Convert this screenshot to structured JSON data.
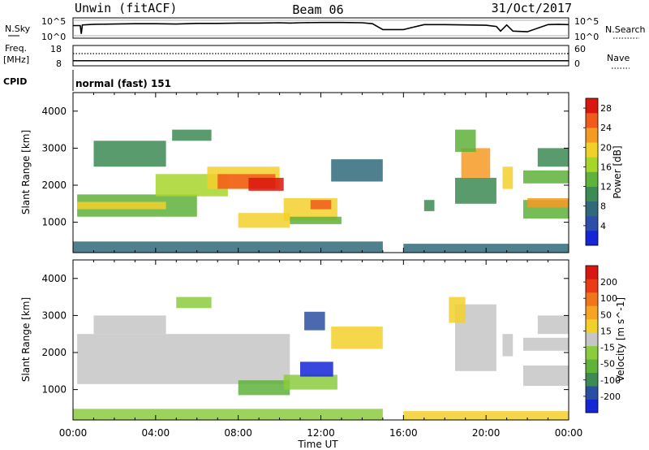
{
  "header": {
    "radar": "Unwin (fitACF)",
    "beam": "Beam 06",
    "date": "31/Oct/2017"
  },
  "noise_panel": {
    "left_label": "N.Sky",
    "right_label": "N.Search",
    "left_ticks": [
      "10^5",
      "10^0"
    ],
    "right_ticks": [
      "10^5",
      "10^0"
    ],
    "trace_color": "#000000",
    "nsky_log10": [
      [
        0.0,
        3.3
      ],
      [
        0.35,
        3.3
      ],
      [
        0.4,
        0.6
      ],
      [
        0.45,
        3.5
      ],
      [
        1.0,
        3.7
      ],
      [
        2.0,
        3.8
      ],
      [
        3.0,
        3.9
      ],
      [
        4.0,
        3.9
      ],
      [
        5.0,
        3.8
      ],
      [
        6.0,
        4.0
      ],
      [
        7.0,
        4.0
      ],
      [
        8.0,
        4.1
      ],
      [
        9.0,
        4.1
      ],
      [
        10.0,
        4.2
      ],
      [
        10.5,
        4.1
      ],
      [
        11.0,
        4.2
      ],
      [
        12.0,
        4.3
      ],
      [
        13.0,
        4.3
      ],
      [
        14.0,
        4.2
      ],
      [
        14.5,
        3.9
      ],
      [
        15.0,
        2.0
      ],
      [
        16.0,
        2.0
      ],
      [
        17.0,
        3.6
      ],
      [
        18.0,
        3.6
      ],
      [
        19.0,
        3.5
      ],
      [
        20.0,
        3.4
      ],
      [
        20.5,
        3.0
      ],
      [
        20.7,
        1.5
      ],
      [
        21.0,
        3.5
      ],
      [
        21.3,
        1.5
      ],
      [
        22.0,
        1.3
      ],
      [
        23.0,
        3.6
      ],
      [
        23.5,
        3.7
      ],
      [
        24.0,
        3.6
      ]
    ]
  },
  "freq_panel": {
    "left_label": "Freq.",
    "left_units": "[MHz]",
    "right_label": "Nave",
    "left_ticks": [
      "18",
      "8"
    ],
    "right_ticks": [
      "60",
      "0"
    ],
    "freq_mhz": 10.5,
    "nave": 36
  },
  "cpid": {
    "label": "CPID",
    "text": "normal (fast) 151"
  },
  "time_axis": {
    "label": "Time UT",
    "ticks": [
      "00:00",
      "04:00",
      "08:00",
      "12:00",
      "16:00",
      "20:00",
      "00:00"
    ]
  },
  "chart_data": [
    {
      "type": "heatmap",
      "name": "power",
      "xlabel": "",
      "ylabel": "Slant Range [km]",
      "y_ticks": [
        "1000",
        "2000",
        "3000",
        "4000"
      ],
      "xlim_hours": [
        0,
        24
      ],
      "ylim_km": [
        180,
        4500
      ],
      "colorbar": {
        "label": "Power [dB]",
        "ticks": [
          "4",
          "8",
          "12",
          "16",
          "20",
          "24",
          "28"
        ],
        "range": [
          0,
          30
        ],
        "colors": [
          "#1426d6",
          "#2b4fa8",
          "#2f6a7a",
          "#3c8a54",
          "#5fb23a",
          "#a7d62a",
          "#f2d02a",
          "#f59a24",
          "#f05a1c",
          "#d9160f"
        ]
      },
      "regions": [
        {
          "t0": 0.2,
          "t1": 6.0,
          "r0": 1150,
          "r1": 1750,
          "value": 13
        },
        {
          "t0": 0.2,
          "t1": 4.5,
          "r0": 1350,
          "r1": 1550,
          "value": 18
        },
        {
          "t0": 4.0,
          "t1": 7.5,
          "r0": 1700,
          "r1": 2300,
          "value": 17
        },
        {
          "t0": 6.5,
          "t1": 10.0,
          "r0": 1900,
          "r1": 2500,
          "value": 19
        },
        {
          "t0": 7.0,
          "t1": 9.8,
          "r0": 1900,
          "r1": 2300,
          "value": 25
        },
        {
          "t0": 8.5,
          "t1": 10.2,
          "r0": 1850,
          "r1": 2200,
          "value": 28
        },
        {
          "t0": 1.0,
          "t1": 4.5,
          "r0": 2500,
          "r1": 3200,
          "value": 9
        },
        {
          "t0": 4.8,
          "t1": 6.7,
          "r0": 3200,
          "r1": 3500,
          "value": 11
        },
        {
          "t0": 8.0,
          "t1": 10.5,
          "r0": 850,
          "r1": 1250,
          "value": 19
        },
        {
          "t0": 10.2,
          "t1": 12.8,
          "r0": 1050,
          "r1": 1650,
          "value": 20
        },
        {
          "t0": 11.5,
          "t1": 12.5,
          "r0": 1350,
          "r1": 1600,
          "value": 26
        },
        {
          "t0": 10.5,
          "t1": 13.0,
          "r0": 950,
          "r1": 1150,
          "value": 14
        },
        {
          "t0": 12.5,
          "t1": 15.0,
          "r0": 2100,
          "r1": 2700,
          "value": 6
        },
        {
          "t0": 18.5,
          "t1": 20.5,
          "r0": 1500,
          "r1": 2200,
          "value": 11
        },
        {
          "t0": 18.8,
          "t1": 20.2,
          "r0": 2200,
          "r1": 3000,
          "value": 22
        },
        {
          "t0": 18.5,
          "t1": 19.5,
          "r0": 2900,
          "r1": 3500,
          "value": 14
        },
        {
          "t0": 20.8,
          "t1": 21.3,
          "r0": 1900,
          "r1": 2500,
          "value": 20
        },
        {
          "t0": 21.8,
          "t1": 24.0,
          "r0": 1100,
          "r1": 1600,
          "value": 14
        },
        {
          "t0": 22.0,
          "t1": 24.0,
          "r0": 1400,
          "r1": 1650,
          "value": 22
        },
        {
          "t0": 21.8,
          "t1": 24.0,
          "r0": 2050,
          "r1": 2400,
          "value": 12
        },
        {
          "t0": 22.5,
          "t1": 24.0,
          "r0": 2500,
          "r1": 3000,
          "value": 10
        },
        {
          "t0": 0.0,
          "t1": 15.0,
          "r0": 180,
          "r1": 480,
          "value": 6
        },
        {
          "t0": 16.0,
          "t1": 24.0,
          "r0": 180,
          "r1": 420,
          "value": 8
        },
        {
          "t0": 17.0,
          "t1": 17.5,
          "r0": 1300,
          "r1": 1600,
          "value": 9
        }
      ]
    },
    {
      "type": "heatmap",
      "name": "velocity",
      "xlabel": "Time UT",
      "ylabel": "Slant Range [km]",
      "y_ticks": [
        "1000",
        "2000",
        "3000",
        "4000"
      ],
      "xlim_hours": [
        0,
        24
      ],
      "ylim_km": [
        180,
        4500
      ],
      "colorbar": {
        "label": "Velocity [m s^-1]",
        "ticks": [
          "200",
          "100",
          "50",
          "15",
          "-15",
          "-50",
          "-100",
          "-200"
        ],
        "range": [
          -250,
          250
        ],
        "colors": [
          "#1426d6",
          "#2a4fa0",
          "#3c8a54",
          "#5fb23a",
          "#8ccb3e",
          "#c6c6c6",
          "#f2d02a",
          "#f5a523",
          "#f0761c",
          "#ea3b14",
          "#d9160f"
        ]
      },
      "regions": [
        {
          "t0": 0.2,
          "t1": 10.5,
          "r0": 1150,
          "r1": 2500,
          "value": 0
        },
        {
          "t0": 1.0,
          "t1": 4.5,
          "r0": 2500,
          "r1": 3000,
          "value": 0
        },
        {
          "t0": 8.0,
          "t1": 10.5,
          "r0": 850,
          "r1": 1250,
          "value": -70
        },
        {
          "t0": 10.2,
          "t1": 12.8,
          "r0": 1000,
          "r1": 1400,
          "value": -60
        },
        {
          "t0": 11.0,
          "t1": 12.6,
          "r0": 1350,
          "r1": 1750,
          "value": -210
        },
        {
          "t0": 11.2,
          "t1": 12.2,
          "r0": 2600,
          "r1": 3100,
          "value": -180
        },
        {
          "t0": 5.0,
          "t1": 6.7,
          "r0": 3200,
          "r1": 3500,
          "value": -60
        },
        {
          "t0": 12.5,
          "t1": 15.0,
          "r0": 2100,
          "r1": 2700,
          "value": 30
        },
        {
          "t0": 18.5,
          "t1": 20.5,
          "r0": 1500,
          "r1": 3300,
          "value": 0
        },
        {
          "t0": 18.2,
          "t1": 19.0,
          "r0": 2800,
          "r1": 3500,
          "value": 40
        },
        {
          "t0": 20.8,
          "t1": 21.3,
          "r0": 1900,
          "r1": 2500,
          "value": 0
        },
        {
          "t0": 21.8,
          "t1": 24.0,
          "r0": 1100,
          "r1": 1650,
          "value": 0
        },
        {
          "t0": 21.8,
          "t1": 24.0,
          "r0": 2050,
          "r1": 2400,
          "value": 0
        },
        {
          "t0": 22.5,
          "t1": 24.0,
          "r0": 2500,
          "r1": 3000,
          "value": 20
        },
        {
          "t0": 0.0,
          "t1": 15.0,
          "r0": 180,
          "r1": 480,
          "value": -30
        },
        {
          "t0": 16.0,
          "t1": 24.0,
          "r0": 180,
          "r1": 420,
          "value": 30
        }
      ]
    }
  ]
}
